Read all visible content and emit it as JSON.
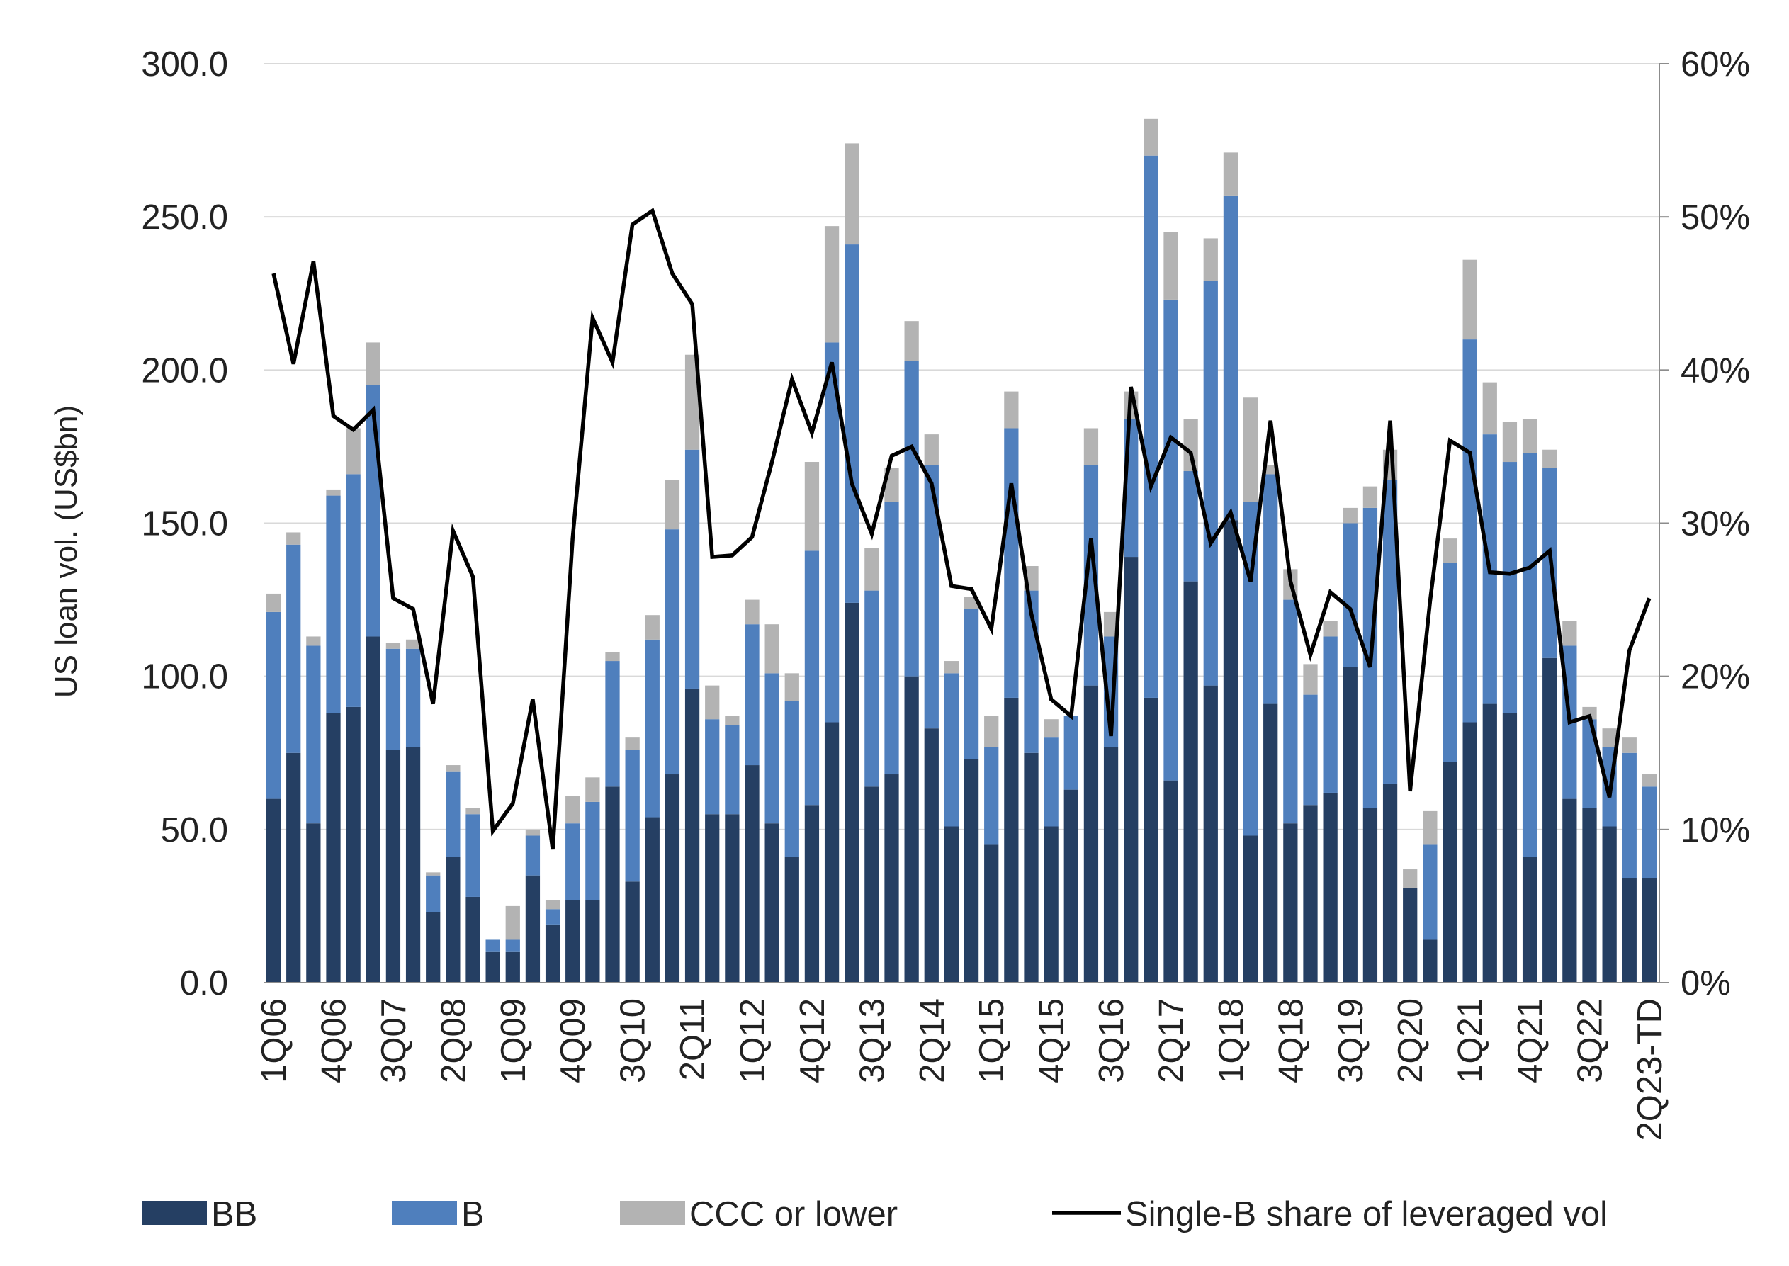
{
  "chart_data": {
    "type": "bar",
    "stacked": true,
    "ylabel": "US loan vol. (US$bn)",
    "ylim": [
      0,
      300
    ],
    "y_ticks": [
      "0.0",
      "50.0",
      "100.0",
      "150.0",
      "200.0",
      "250.0",
      "300.0"
    ],
    "y2lim": [
      0,
      60
    ],
    "y2_ticks": [
      "0%",
      "10%",
      "20%",
      "30%",
      "40%",
      "50%",
      "60%"
    ],
    "grid": true,
    "legend_position": "bottom",
    "colors": {
      "BB": "#253f63",
      "B": "#4f7fbd",
      "CCC or lower": "#b3b3b3",
      "line": "#000000"
    },
    "categories": [
      "1Q06",
      "2Q06",
      "3Q06",
      "4Q06",
      "1Q07",
      "2Q07",
      "3Q07",
      "4Q07",
      "1Q08",
      "2Q08",
      "3Q08",
      "4Q08",
      "1Q09",
      "2Q09",
      "3Q09",
      "4Q09",
      "1Q10",
      "2Q10",
      "3Q10",
      "4Q10",
      "1Q11",
      "2Q11",
      "3Q11",
      "4Q11",
      "1Q12",
      "2Q12",
      "3Q12",
      "4Q12",
      "1Q13",
      "2Q13",
      "3Q13",
      "4Q13",
      "1Q14",
      "2Q14",
      "3Q14",
      "4Q14",
      "1Q15",
      "2Q15",
      "3Q15",
      "4Q15",
      "1Q16",
      "2Q16",
      "3Q16",
      "4Q16",
      "1Q17",
      "2Q17",
      "3Q17",
      "4Q17",
      "1Q18",
      "2Q18",
      "3Q18",
      "4Q18",
      "1Q19",
      "2Q19",
      "3Q19",
      "4Q19",
      "1Q20",
      "2Q20",
      "3Q20",
      "4Q20",
      "1Q21",
      "2Q21",
      "3Q21",
      "4Q21",
      "1Q22",
      "2Q22",
      "3Q22",
      "4Q22",
      "1Q23",
      "2Q23-TD"
    ],
    "x_tick_labels": [
      "1Q06",
      "4Q06",
      "3Q07",
      "2Q08",
      "1Q09",
      "4Q09",
      "3Q10",
      "2Q11",
      "1Q12",
      "4Q12",
      "3Q13",
      "2Q14",
      "1Q15",
      "4Q15",
      "3Q16",
      "2Q17",
      "1Q18",
      "4Q18",
      "3Q19",
      "2Q20",
      "1Q21",
      "4Q21",
      "3Q22",
      "2Q23-TD"
    ],
    "series": [
      {
        "name": "BB",
        "values": [
          60,
          75,
          52,
          88,
          90,
          113,
          76,
          77,
          23,
          41,
          28,
          10,
          10,
          35,
          19,
          27,
          27,
          64,
          33,
          54,
          68,
          96,
          55,
          55,
          71,
          52,
          41,
          58,
          85,
          124,
          64,
          68,
          100,
          83,
          51,
          73,
          45,
          93,
          75,
          51,
          63,
          97,
          77,
          139,
          93,
          66,
          131,
          97,
          151,
          48,
          91,
          52,
          58,
          62,
          103,
          57,
          65,
          31,
          14,
          72,
          85,
          91,
          88,
          41,
          106,
          60,
          57,
          51,
          34,
          34
        ]
      },
      {
        "name": "B",
        "values": [
          61,
          68,
          58,
          71,
          76,
          82,
          33,
          32,
          12,
          28,
          27,
          4,
          4,
          13,
          5,
          25,
          32,
          41,
          43,
          58,
          80,
          78,
          31,
          29,
          46,
          49,
          51,
          83,
          124,
          117,
          64,
          89,
          103,
          86,
          50,
          49,
          32,
          88,
          53,
          29,
          24,
          72,
          36,
          45,
          177,
          157,
          36,
          132,
          106,
          109,
          75,
          73,
          36,
          51,
          47,
          98,
          99,
          -1,
          31,
          65,
          125,
          88,
          82,
          132,
          62,
          50,
          29,
          26,
          41,
          30
        ]
      },
      {
        "name": "CCC or lower",
        "values": [
          6,
          4,
          3,
          2,
          15,
          14,
          2,
          3,
          1,
          2,
          2,
          0,
          11,
          2,
          3,
          9,
          8,
          3,
          4,
          8,
          16,
          31,
          11,
          3,
          8,
          16,
          9,
          29,
          38,
          33,
          14,
          11,
          13,
          10,
          4,
          4,
          10,
          12,
          8,
          6,
          0,
          12,
          8,
          9,
          12,
          22,
          17,
          14,
          14,
          34,
          3,
          10,
          10,
          5,
          5,
          7,
          10,
          6,
          11,
          8,
          26,
          17,
          13,
          11,
          6,
          8,
          4,
          6,
          5,
          4
        ]
      },
      {
        "name": "Single-B share of leveraged vol",
        "axis": "right",
        "values": [
          46.3,
          40.4,
          47.1,
          37.0,
          36.1,
          37.4,
          25.1,
          24.4,
          18.2,
          29.5,
          26.5,
          9.9,
          11.7,
          18.5,
          8.7,
          29.0,
          43.4,
          40.5,
          49.5,
          50.4,
          46.3,
          44.3,
          27.8,
          27.9,
          29.1,
          34.0,
          39.4,
          35.9,
          40.5,
          32.6,
          29.3,
          34.4,
          35.0,
          32.6,
          25.9,
          25.7,
          23.1,
          32.6,
          24.1,
          18.5,
          17.4,
          29.0,
          16.1,
          38.9,
          32.4,
          35.6,
          34.6,
          28.7,
          30.7,
          26.2,
          36.7,
          26.2,
          21.4,
          25.5,
          24.4,
          20.6,
          36.7,
          12.5,
          24.9,
          35.4,
          34.6,
          26.8,
          26.7,
          27.1,
          28.2,
          17.0,
          17.4,
          12.1,
          21.7,
          25.1
        ]
      }
    ]
  }
}
